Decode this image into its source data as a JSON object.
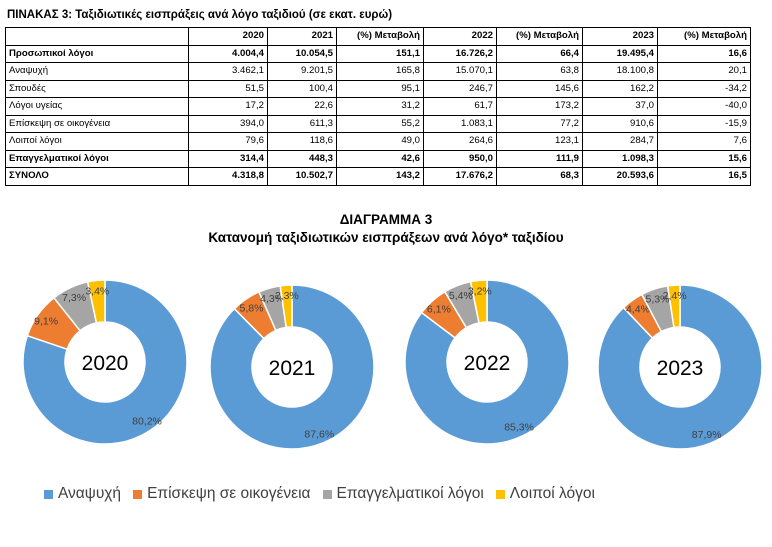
{
  "table": {
    "title": "ΠΙΝΑΚΑΣ 3: Ταξιδιωτικές εισπράξεις ανά λόγο ταξιδιού (σε εκατ. ευρώ)",
    "headers": [
      "",
      "2020",
      "2021",
      "(%) Μεταβολή",
      "2022",
      "(%) Μεταβολή",
      "2023",
      "(%) Μεταβολή"
    ],
    "rows": [
      {
        "cells": [
          "Προσωπικοί λόγοι",
          "4.004,4",
          "10.054,5",
          "151,1",
          "16.726,2",
          "66,4",
          "19.495,4",
          "16,6"
        ],
        "bold": true
      },
      {
        "cells": [
          "Αναψυχή",
          "3.462,1",
          "9.201,5",
          "165,8",
          "15.070,1",
          "63,8",
          "18.100,8",
          "20,1"
        ],
        "bold": false
      },
      {
        "cells": [
          "Σπουδές",
          "51,5",
          "100,4",
          "95,1",
          "246,7",
          "145,6",
          "162,2",
          "-34,2"
        ],
        "bold": false
      },
      {
        "cells": [
          "Λόγοι υγείας",
          "17,2",
          "22,6",
          "31,2",
          "61,7",
          "173,2",
          "37,0",
          "-40,0"
        ],
        "bold": false
      },
      {
        "cells": [
          "Επίσκεψη σε οικογένεια",
          "394,0",
          "611,3",
          "55,2",
          "1.083,1",
          "77,2",
          "910,6",
          "-15,9"
        ],
        "bold": false
      },
      {
        "cells": [
          "Λοιποί λόγοι",
          "79,6",
          "118,6",
          "49,0",
          "264,6",
          "123,1",
          "284,7",
          "7,6"
        ],
        "bold": false
      },
      {
        "cells": [
          "Επαγγελματικοί λόγοι",
          "314,4",
          "448,3",
          "42,6",
          "950,0",
          "111,9",
          "1.098,3",
          "15,6"
        ],
        "bold": true
      },
      {
        "cells": [
          "ΣΥΝΟΛΟ",
          "4.318,8",
          "10.502,7",
          "143,2",
          "17.676,2",
          "68,3",
          "20.593,6",
          "16,5"
        ],
        "bold": true
      }
    ]
  },
  "chart_data": {
    "type": "pie",
    "title": "ΔΙΑΓΡΑΜΜΑ 3",
    "subtitle": "Κατανομή ταξιδιωτικών εισπράξεων ανά λόγο* ταξιδίου",
    "legend": "bottom",
    "series_names": [
      "Αναψυχή",
      "Επίσκεψη σε οικογένεια",
      "Επαγγελματικοί λόγοι",
      "Λοιποί λόγοι"
    ],
    "colors": [
      "#5B9BD5",
      "#ED7D31",
      "#A5A5A5",
      "#FFC000"
    ],
    "charts": [
      {
        "year": "2020",
        "values": [
          80.2,
          9.1,
          7.3,
          3.4
        ],
        "labels": [
          "80,2%",
          "9,1%",
          "7,3%",
          "3,4%"
        ]
      },
      {
        "year": "2021",
        "values": [
          87.6,
          5.8,
          4.3,
          2.3
        ],
        "labels": [
          "87,6%",
          "5,8%",
          "4,3%",
          "2,3%"
        ]
      },
      {
        "year": "2022",
        "values": [
          85.3,
          6.1,
          5.4,
          3.2
        ],
        "labels": [
          "85,3%",
          "6,1%",
          "5,4%",
          "3,2%"
        ]
      },
      {
        "year": "2023",
        "values": [
          87.9,
          4.4,
          5.3,
          2.4
        ],
        "labels": [
          "87,9%",
          "4,4%",
          "5,3%",
          "2,4%"
        ]
      }
    ]
  }
}
